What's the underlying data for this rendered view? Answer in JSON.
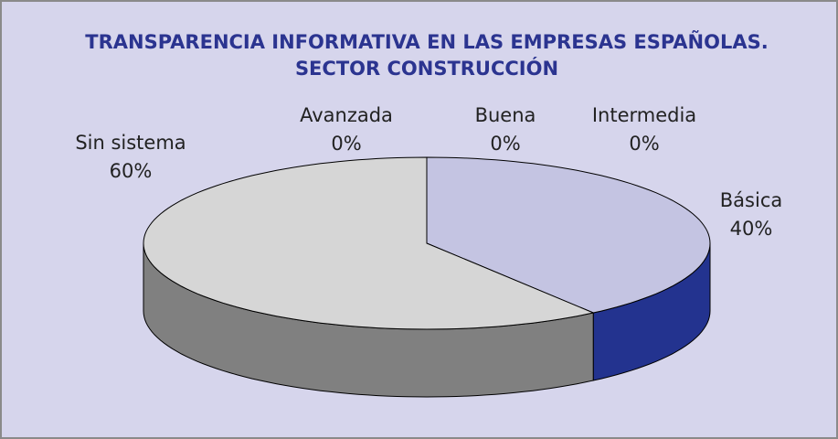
{
  "chart_data": {
    "type": "pie3d",
    "title": [
      "TRANSPARENCIA INFORMATIVA EN LAS EMPRESAS ESPAÑOLAS.",
      "SECTOR CONSTRUCCIÓN"
    ],
    "categories": [
      "Avanzada",
      "Buena",
      "Intermedia",
      "Básica",
      "Sin sistema"
    ],
    "values": [
      0,
      0,
      0,
      40,
      60
    ],
    "value_labels": [
      "0%",
      "0%",
      "0%",
      "40%",
      "60%"
    ],
    "colors": [
      "#9999ff",
      "#993366",
      "#ffffcc",
      "#c4c4e2",
      "#d6d6d6"
    ],
    "side_colors": [
      "#5c5c99",
      "#5c1f3d",
      "#99997a",
      "#23338f",
      "#808080"
    ]
  }
}
